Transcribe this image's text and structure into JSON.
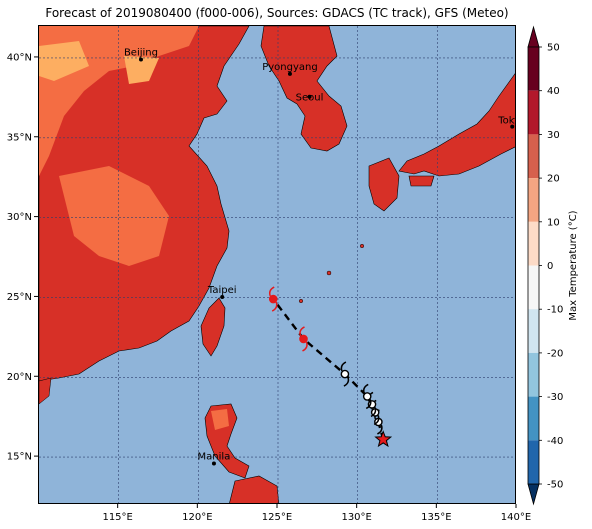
{
  "title": "Forecast of 2019080400 (f000-006), Sources: GDACS (TC track), GFS (Meteo)",
  "map": {
    "lon_range": [
      110,
      140
    ],
    "lat_range": [
      12,
      42
    ],
    "lat_ticks": [
      {
        "value": 40,
        "label": "40°N"
      },
      {
        "value": 35,
        "label": "35°N"
      },
      {
        "value": 30,
        "label": "30°N"
      },
      {
        "value": 25,
        "label": "25°N"
      },
      {
        "value": 20,
        "label": "20°N"
      },
      {
        "value": 15,
        "label": "15°N"
      }
    ],
    "lon_ticks": [
      {
        "value": 115,
        "label": "115°E"
      },
      {
        "value": 120,
        "label": "120°E"
      },
      {
        "value": 125,
        "label": "125°E"
      },
      {
        "value": 130,
        "label": "130°E"
      },
      {
        "value": 135,
        "label": "135°E"
      },
      {
        "value": 140,
        "label": "140°E"
      }
    ],
    "cities": [
      {
        "name": "Beijing",
        "lon": 116.4,
        "lat": 39.9
      },
      {
        "name": "Pyongyang",
        "lon": 125.75,
        "lat": 39.0
      },
      {
        "name": "Seoul",
        "lon": 126.98,
        "lat": 37.57
      },
      {
        "name": "Tokyo",
        "lon": 139.7,
        "lat": 35.7
      },
      {
        "name": "Taipei",
        "lon": 121.5,
        "lat": 25.03
      },
      {
        "name": "Manila",
        "lon": 120.98,
        "lat": 14.6
      }
    ],
    "track": [
      {
        "lon": 131.6,
        "lat": 16.1,
        "kind": "star"
      },
      {
        "lon": 131.3,
        "lat": 17.2,
        "kind": "open"
      },
      {
        "lon": 131.1,
        "lat": 17.8,
        "kind": "open"
      },
      {
        "lon": 130.9,
        "lat": 18.3,
        "kind": "open"
      },
      {
        "lon": 130.6,
        "lat": 18.8,
        "kind": "open"
      },
      {
        "lon": 129.2,
        "lat": 20.2,
        "kind": "open"
      },
      {
        "lon": 126.6,
        "lat": 22.4,
        "kind": "red"
      },
      {
        "lon": 124.7,
        "lat": 24.9,
        "kind": "red"
      }
    ],
    "colors": {
      "ocean": "#8fb4d9",
      "land_hot": "#d73027",
      "land_warm": "#f46d43",
      "land_mild": "#fdae61",
      "track_open": "#ffffff",
      "track_red": "#e41a1c",
      "star": "#e41a1c"
    }
  },
  "colorbar": {
    "label": "Max Temperature (°C)",
    "ticks": [
      50,
      40,
      30,
      20,
      10,
      0,
      -10,
      -20,
      -30,
      -40,
      -50
    ],
    "colors": [
      "#67001f",
      "#b2182b",
      "#d6604d",
      "#f4a582",
      "#fddbc7",
      "#f7f7f7",
      "#d1e5f0",
      "#92c5de",
      "#4393c3",
      "#2166ac",
      "#053061"
    ]
  }
}
